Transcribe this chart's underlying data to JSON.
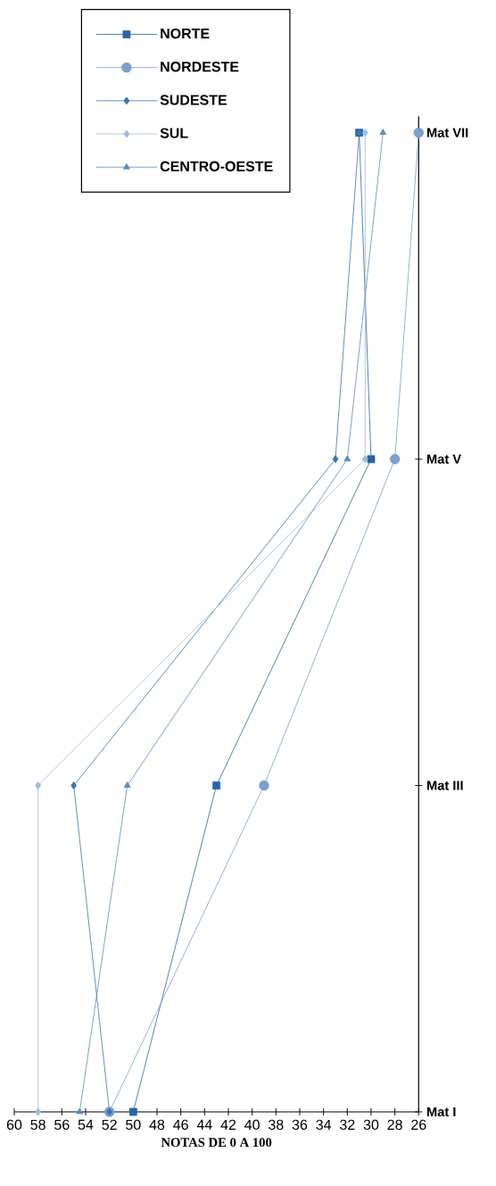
{
  "chart_data": {
    "type": "line",
    "orientation": "horizontal",
    "xlabel": "NOTAS DE 0 A 100",
    "categories": [
      "Mat VII",
      "Mat V",
      "Mat III",
      "Mat I"
    ],
    "series": [
      {
        "name": "NORTE",
        "color": "#2a64a4",
        "marker": "square",
        "values": [
          31,
          30,
          43,
          50
        ]
      },
      {
        "name": "NORDESTE",
        "color": "#7aa0cc",
        "marker": "circle",
        "values": [
          26,
          28,
          39,
          52
        ]
      },
      {
        "name": "SUDESTE",
        "color": "#3a74b4",
        "marker": "diamond",
        "values": [
          31,
          33,
          55,
          52
        ]
      },
      {
        "name": "SUL",
        "color": "#9dbbdc",
        "marker": "diamond",
        "values": [
          30.5,
          30.5,
          58,
          58
        ]
      },
      {
        "name": "CENTRO-OESTE",
        "color": "#5b8cc0",
        "marker": "triangle",
        "values": [
          29,
          32,
          50.5,
          54.5
        ]
      }
    ],
    "xlim": [
      60,
      26
    ],
    "xticks": [
      60,
      58,
      56,
      54,
      52,
      50,
      48,
      46,
      44,
      42,
      40,
      38,
      36,
      34,
      32,
      30,
      28,
      26
    ],
    "legend": "top"
  }
}
